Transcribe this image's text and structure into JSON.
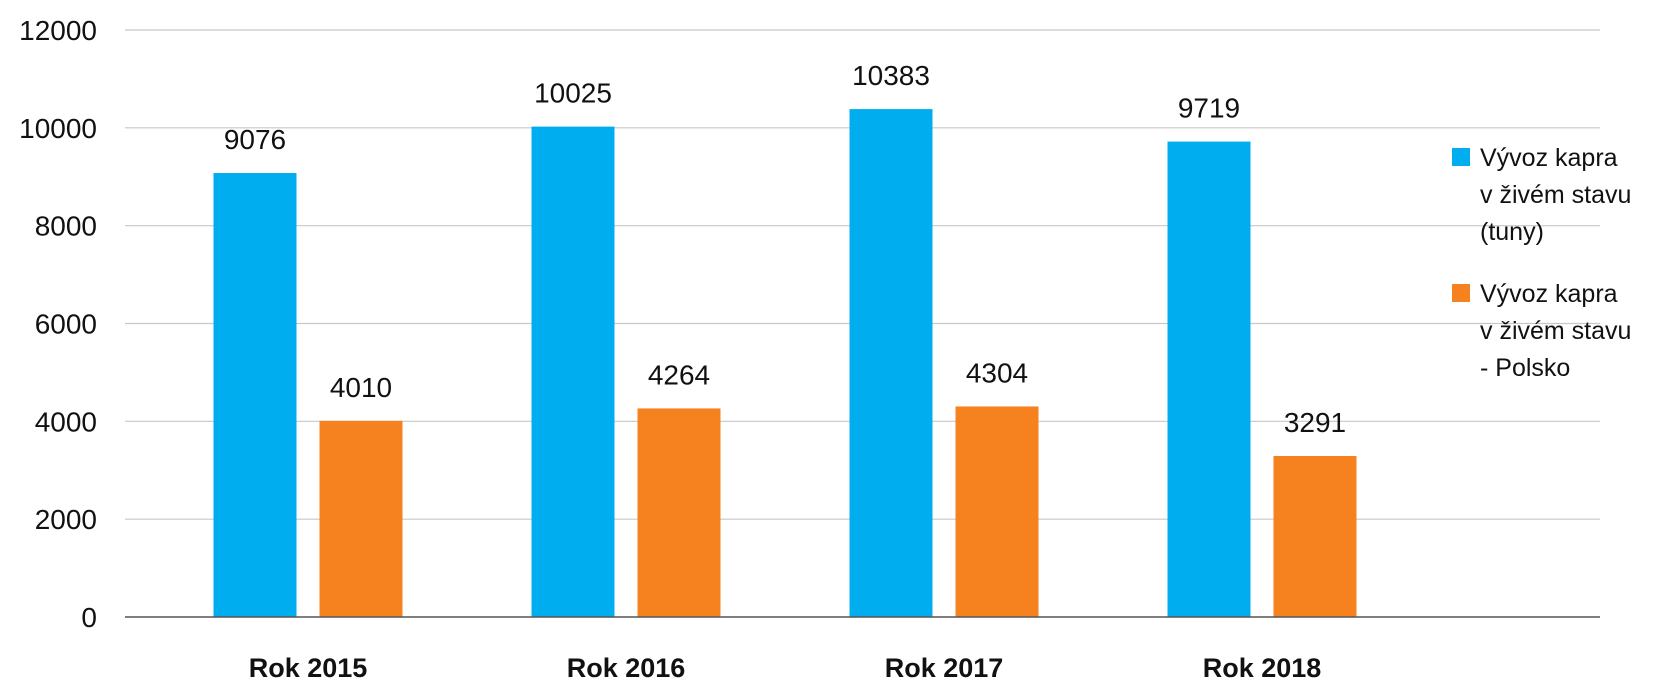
{
  "chart_data": {
    "type": "bar",
    "title": "",
    "xlabel": "",
    "ylabel": "",
    "categories": [
      "Rok 2015",
      "Rok 2016",
      "Rok 2017",
      "Rok 2018"
    ],
    "series": [
      {
        "name": [
          "Výv​oz kapra",
          "v živém stavu",
          "(tuny)"
        ],
        "color": "#00AEEF",
        "values": [
          9076,
          10025,
          10383,
          9719
        ]
      },
      {
        "name": [
          "Vývoz kapra",
          "v živém stavu",
          "- Polsko"
        ],
        "color": "#F5821F",
        "values": [
          4010,
          4264,
          4304,
          3291
        ]
      }
    ],
    "ylim": [
      0,
      12000
    ],
    "yticks": [
      0,
      2000,
      4000,
      6000,
      8000,
      10000,
      12000
    ],
    "grid": true,
    "legend": "right",
    "data_labels": true
  }
}
